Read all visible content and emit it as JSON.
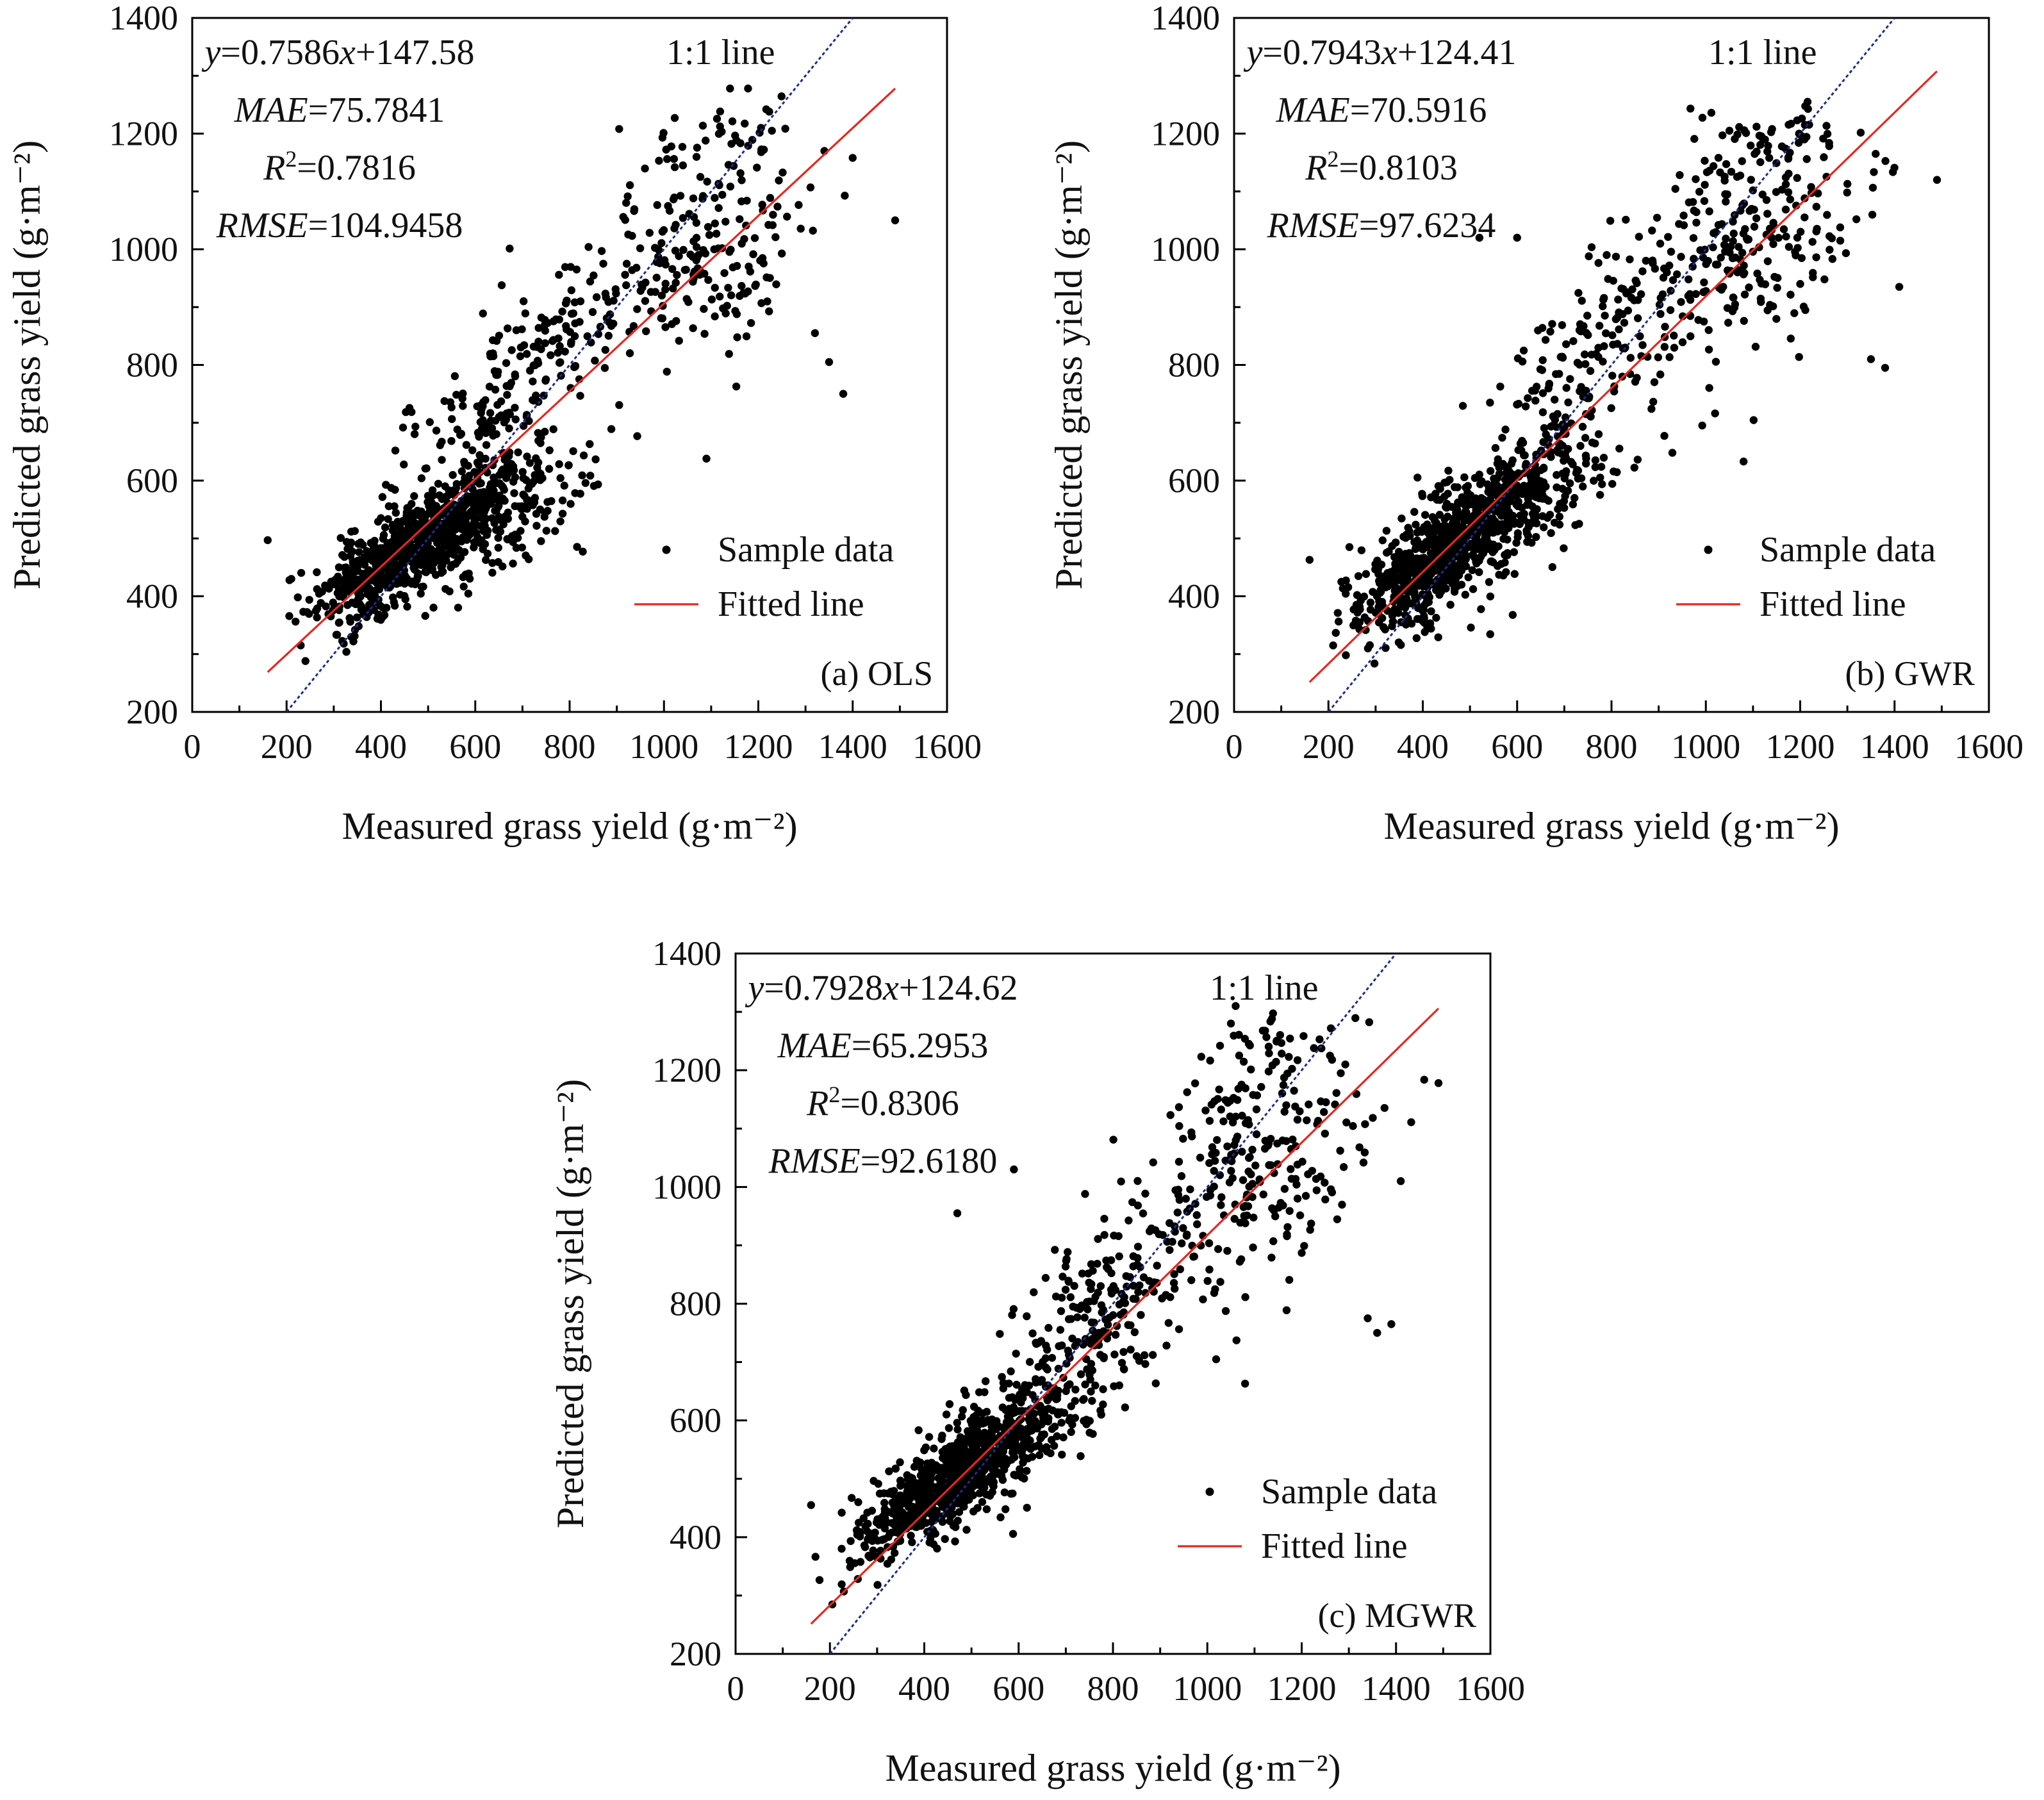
{
  "chart_data": [
    {
      "type": "scatter",
      "panel_label": "(a) OLS",
      "xlabel": "Measured grass yield (g·m⁻²)",
      "ylabel": "Predicted grass yield (g·m⁻²)",
      "xlim": [
        0,
        1600
      ],
      "ylim": [
        200,
        1400
      ],
      "xticks": [
        "0",
        "200",
        "400",
        "600",
        "800",
        "1000",
        "1200",
        "1400",
        "1600"
      ],
      "yticks": [
        "200",
        "400",
        "600",
        "800",
        "1000",
        "1200",
        "1400"
      ],
      "equation": "y=0.7586x+147.58",
      "fit": {
        "slope": 0.7586,
        "intercept": 147.58,
        "x_range": [
          160,
          1490
        ]
      },
      "stats": {
        "MAE": "75.7841",
        "R2": "0.7816",
        "RMSE": "104.9458"
      },
      "reference_line_label": "1:1 line",
      "legend": {
        "position": "bottom-right",
        "entries": [
          "Sample data",
          "Fitted line"
        ]
      },
      "sample_data": {
        "approx_points": 1400,
        "clusters": [
          {
            "x_mean": 460,
            "y_mean": 480,
            "x_sd": 95,
            "y_sd": 60,
            "corr": 0.75,
            "weight": 0.55
          },
          {
            "x_mean": 640,
            "y_mean": 560,
            "x_sd": 110,
            "y_sd": 70,
            "corr": 0.5,
            "weight": 0.14
          },
          {
            "x_mean": 620,
            "y_mean": 700,
            "x_sd": 90,
            "y_sd": 70,
            "corr": 0.4,
            "weight": 0.08
          },
          {
            "x_mean": 760,
            "y_mean": 860,
            "x_sd": 80,
            "y_sd": 60,
            "corr": 0.3,
            "weight": 0.06
          },
          {
            "x_mean": 1080,
            "y_mean": 980,
            "x_sd": 120,
            "y_sd": 90,
            "corr": 0.3,
            "weight": 0.14
          },
          {
            "x_mean": 1120,
            "y_mean": 1180,
            "x_sd": 90,
            "y_sd": 50,
            "corr": 0.2,
            "weight": 0.03
          }
        ],
        "notable_points": [
          [
            160,
            497
          ],
          [
            210,
            430
          ],
          [
            240,
            288
          ],
          [
            230,
            315
          ],
          [
            1490,
            1050
          ],
          [
            1400,
            1158
          ],
          [
            1380,
            750
          ],
          [
            1340,
            1170
          ],
          [
            1090,
            638
          ],
          [
            1140,
            1278
          ],
          [
            1320,
            855
          ],
          [
            905,
            1208
          ],
          [
            1350,
            805
          ]
        ]
      }
    },
    {
      "type": "scatter",
      "panel_label": "(b) GWR",
      "xlabel": "Measured grass yield (g·m⁻²)",
      "ylabel": "Predicted grass yield (g·m⁻²)",
      "xlim": [
        0,
        1600
      ],
      "ylim": [
        200,
        1400
      ],
      "xticks": [
        "0",
        "200",
        "400",
        "600",
        "800",
        "1000",
        "1200",
        "1400",
        "1600"
      ],
      "yticks": [
        "200",
        "400",
        "600",
        "800",
        "1000",
        "1200",
        "1400"
      ],
      "equation": "y=0.7943x+124.41",
      "fit": {
        "slope": 0.7943,
        "intercept": 124.41,
        "x_range": [
          160,
          1490
        ]
      },
      "stats": {
        "MAE": "70.5916",
        "R2": "0.8103",
        "RMSE": "97.6234"
      },
      "reference_line_label": "1:1 line",
      "legend": {
        "position": "bottom-right",
        "entries": [
          "Sample data",
          "Fitted line"
        ]
      },
      "sample_data": {
        "approx_points": 1400,
        "clusters": [
          {
            "x_mean": 450,
            "y_mean": 480,
            "x_sd": 95,
            "y_sd": 70,
            "corr": 0.75,
            "weight": 0.55
          },
          {
            "x_mean": 650,
            "y_mean": 600,
            "x_sd": 110,
            "y_sd": 80,
            "corr": 0.55,
            "weight": 0.15
          },
          {
            "x_mean": 760,
            "y_mean": 820,
            "x_sd": 90,
            "y_sd": 80,
            "corr": 0.4,
            "weight": 0.09
          },
          {
            "x_mean": 1080,
            "y_mean": 1000,
            "x_sd": 130,
            "y_sd": 110,
            "corr": 0.4,
            "weight": 0.18
          },
          {
            "x_mean": 1100,
            "y_mean": 1170,
            "x_sd": 70,
            "y_sd": 40,
            "corr": 0.2,
            "weight": 0.03
          }
        ],
        "notable_points": [
          [
            160,
            463
          ],
          [
            210,
            315
          ],
          [
            1490,
            1120
          ],
          [
            1410,
            935
          ],
          [
            1380,
            795
          ],
          [
            1080,
            633
          ],
          [
            1350,
            810
          ],
          [
            1360,
            1165
          ],
          [
            1210,
            1215
          ],
          [
            1050,
            1205
          ],
          [
            520,
            1020
          ],
          [
            600,
            1020
          ]
        ]
      }
    },
    {
      "type": "scatter",
      "panel_label": "(c) MGWR",
      "xlabel": "Measured grass yield (g·m⁻²)",
      "ylabel": "Predicted grass yield (g·m⁻²)",
      "xlim": [
        0,
        1600
      ],
      "ylim": [
        200,
        1400
      ],
      "xticks": [
        "0",
        "200",
        "400",
        "600",
        "800",
        "1000",
        "1200",
        "1400",
        "1600"
      ],
      "yticks": [
        "200",
        "400",
        "600",
        "800",
        "1000",
        "1200",
        "1400"
      ],
      "equation": "y=0.7928x+124.62",
      "fit": {
        "slope": 0.7928,
        "intercept": 124.62,
        "x_range": [
          160,
          1490
        ]
      },
      "stats": {
        "MAE": "65.2953",
        "R2": "0.8306",
        "RMSE": "92.6180"
      },
      "reference_line_label": "1:1 line",
      "legend": {
        "position": "bottom-right",
        "entries": [
          "Sample data",
          "Fitted line"
        ]
      },
      "sample_data": {
        "approx_points": 1400,
        "clusters": [
          {
            "x_mean": 460,
            "y_mean": 500,
            "x_sd": 95,
            "y_sd": 65,
            "corr": 0.8,
            "weight": 0.56
          },
          {
            "x_mean": 640,
            "y_mean": 620,
            "x_sd": 100,
            "y_sd": 80,
            "corr": 0.6,
            "weight": 0.14
          },
          {
            "x_mean": 780,
            "y_mean": 810,
            "x_sd": 90,
            "y_sd": 80,
            "corr": 0.45,
            "weight": 0.1
          },
          {
            "x_mean": 1080,
            "y_mean": 1010,
            "x_sd": 130,
            "y_sd": 110,
            "corr": 0.45,
            "weight": 0.17
          },
          {
            "x_mean": 1090,
            "y_mean": 1200,
            "x_sd": 70,
            "y_sd": 50,
            "corr": 0.2,
            "weight": 0.03
          }
        ],
        "notable_points": [
          [
            160,
            455
          ],
          [
            1490,
            1178
          ],
          [
            1410,
            1010
          ],
          [
            1390,
            765
          ],
          [
            1340,
            775
          ],
          [
            1360,
            750
          ],
          [
            1080,
            663
          ],
          [
            1060,
            1310
          ],
          [
            1050,
            1280
          ],
          [
            590,
            1030
          ],
          [
            470,
            955
          ],
          [
            1260,
            1225
          ]
        ]
      }
    }
  ],
  "colors": {
    "points": "#000000",
    "fitted_line": "#e8261f",
    "one_to_one_line": "#1d2f8c",
    "axes": "#000000",
    "text": "#111111"
  }
}
